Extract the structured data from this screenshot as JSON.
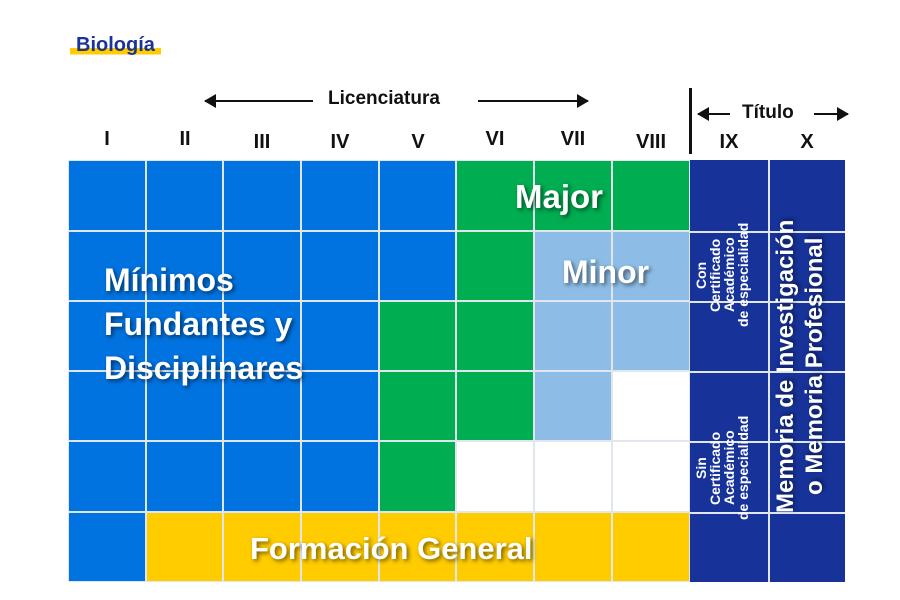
{
  "title": "Biología",
  "header": {
    "licenciatura": "Licenciatura",
    "titulo": "Título"
  },
  "semesters": [
    "I",
    "II",
    "III",
    "IV",
    "V",
    "VI",
    "VII",
    "VIII",
    "IX",
    "X"
  ],
  "colors": {
    "blue": "#0073e0",
    "green": "#00ad50",
    "light_blue": "#8dbde6",
    "yellow": "#ffcc00",
    "dark_blue": "#17339a",
    "white": "#ffffff"
  },
  "grid": [
    [
      "blue",
      "blue",
      "blue",
      "blue",
      "blue",
      "green",
      "green",
      "green"
    ],
    [
      "blue",
      "blue",
      "blue",
      "blue",
      "blue",
      "green",
      "light_blue",
      "light_blue"
    ],
    [
      "blue",
      "blue",
      "blue",
      "blue",
      "green",
      "green",
      "light_blue",
      "light_blue"
    ],
    [
      "blue",
      "blue",
      "blue",
      "blue",
      "green",
      "green",
      "light_blue",
      "white"
    ],
    [
      "blue",
      "blue",
      "blue",
      "blue",
      "green",
      "white",
      "white",
      "white"
    ],
    [
      "blue",
      "yellow",
      "yellow",
      "yellow",
      "yellow",
      "yellow",
      "yellow",
      "yellow"
    ]
  ],
  "labels": {
    "minimos": [
      "Mínimos",
      "Fundantes y",
      "Disciplinares"
    ],
    "major": "Major",
    "minor": "Minor",
    "formacion": "Formación General",
    "con_certificado": [
      "Con",
      "Certificado",
      "Académico",
      "de especialidad"
    ],
    "sin_certificado": [
      "Sin",
      "Certificado",
      "Académico",
      "de especialidad"
    ],
    "memoria": [
      "Memoria de Investigación",
      "o Memoria Profesional"
    ]
  }
}
